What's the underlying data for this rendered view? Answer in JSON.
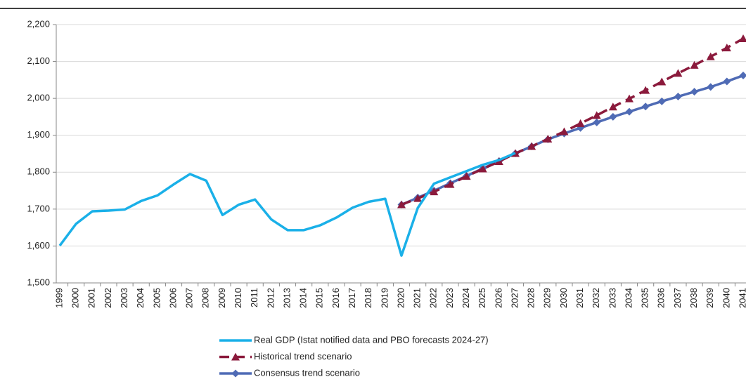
{
  "chart_data": {
    "type": "line",
    "categories": [
      "1999",
      "2000",
      "2001",
      "2002",
      "2003",
      "2004",
      "2005",
      "2006",
      "2007",
      "2008",
      "2009",
      "2010",
      "2011",
      "2012",
      "2013",
      "2014",
      "2015",
      "2016",
      "2017",
      "2018",
      "2019",
      "2020",
      "2021",
      "2022",
      "2023",
      "2024",
      "2025",
      "2026",
      "2027",
      "2028",
      "2029",
      "2030",
      "2031",
      "2032",
      "2033",
      "2034",
      "2035",
      "2036",
      "2037",
      "2038",
      "2039",
      "2040",
      "2041"
    ],
    "series": [
      {
        "name": "Real GDP (Istat notified data and PBO forecasts 2024-27)",
        "color": "#1ab0e8",
        "marker": "none",
        "dashed": false,
        "values": [
          1601,
          1660,
          1694,
          1696,
          1699,
          1722,
          1737,
          1767,
          1795,
          1777,
          1684,
          1712,
          1726,
          1672,
          1643,
          1643,
          1656,
          1677,
          1704,
          1720,
          1728,
          1574,
          1703,
          1769,
          1786,
          1803,
          1820,
          1833,
          1852,
          null,
          null,
          null,
          null,
          null,
          null,
          null,
          null,
          null,
          null,
          null,
          null,
          null,
          null
        ]
      },
      {
        "name": "Historical trend scenario",
        "color": "#8b1a3c",
        "marker": "triangle",
        "dashed": true,
        "values": [
          null,
          null,
          null,
          null,
          null,
          null,
          null,
          null,
          null,
          null,
          null,
          null,
          null,
          null,
          null,
          null,
          null,
          null,
          null,
          null,
          null,
          1712,
          1729,
          1747,
          1767,
          1789,
          1809,
          1829,
          1851,
          1870,
          1890,
          1910,
          1932,
          1954,
          1977,
          1999,
          2022,
          2045,
          2068,
          2090,
          2113,
          2137,
          2162
        ]
      },
      {
        "name": "Consensus trend scenario",
        "color": "#4f6bb5",
        "marker": "diamond",
        "dashed": false,
        "values": [
          null,
          null,
          null,
          null,
          null,
          null,
          null,
          null,
          null,
          null,
          null,
          null,
          null,
          null,
          null,
          null,
          null,
          null,
          null,
          null,
          null,
          1712,
          1731,
          1750,
          1770,
          1790,
          1810,
          1830,
          1851,
          1870,
          1889,
          1905,
          1920,
          1935,
          1950,
          1964,
          1978,
          1992,
          2005,
          2018,
          2031,
          2046,
          2062
        ]
      }
    ],
    "ylim": [
      1500,
      2200
    ],
    "yticks": [
      {
        "value": 1500,
        "label": "1,500"
      },
      {
        "value": 1600,
        "label": "1,600"
      },
      {
        "value": 1700,
        "label": "1,700"
      },
      {
        "value": 1800,
        "label": "1,800"
      },
      {
        "value": 1900,
        "label": "1,900"
      },
      {
        "value": 2000,
        "label": "2,000"
      },
      {
        "value": 2100,
        "label": "2,100"
      },
      {
        "value": 2200,
        "label": "2,200"
      }
    ],
    "grid": true,
    "legend": "bottom"
  }
}
